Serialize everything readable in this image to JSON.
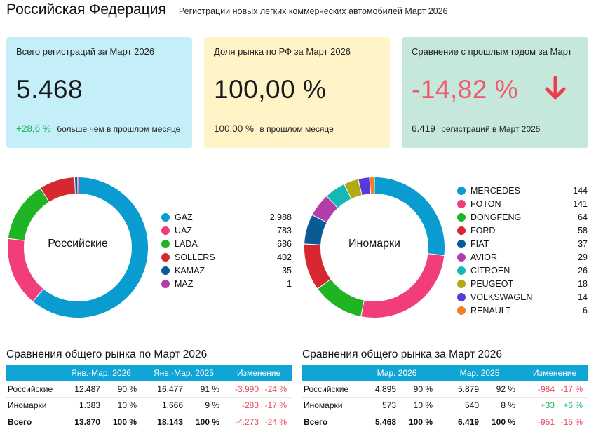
{
  "header": {
    "title": "Российская Федерация",
    "subtitle": "Регистрации новых легких  коммерческих  автомобилей Март 2026"
  },
  "cards": {
    "total": {
      "label": "Всего регистраций за Март 2026",
      "value": "5.468",
      "delta": "+28,6 %",
      "delta_text": "больше чем в прошлом месяце"
    },
    "share": {
      "label": "Доля рынка по РФ за Март 2026",
      "value": "100,00 %",
      "prev": "100,00 %",
      "prev_text": "в прошлом месяце"
    },
    "yoy": {
      "label": "Сравнение с прошлым годом за Март",
      "value": "-14,82 %",
      "arrow_icon": "arrow-down-icon",
      "arrow_color": "#ee3b4e",
      "prev": "6.419",
      "prev_text": "регистраций в Март 2025"
    }
  },
  "chart_data": [
    {
      "type": "pie",
      "title": "Российские",
      "categories": [
        "GAZ",
        "UAZ",
        "LADA",
        "SOLLERS",
        "KAMAZ",
        "MAZ"
      ],
      "values": [
        2988,
        783,
        686,
        402,
        35,
        1
      ],
      "value_labels": [
        "2.988",
        "783",
        "686",
        "402",
        "35",
        "1"
      ],
      "colors": [
        "#0a9bd0",
        "#f23d7d",
        "#1eb424",
        "#d6282e",
        "#0a5a96",
        "#b040a8"
      ],
      "legend": "right"
    },
    {
      "type": "pie",
      "title": "Иномарки",
      "categories": [
        "MERCEDES",
        "FOTON",
        "DONGFENG",
        "FORD",
        "FIAT",
        "AVIOR",
        "CITROEN",
        "PEUGEOT",
        "VOLKSWAGEN",
        "RENAULT"
      ],
      "values": [
        144,
        141,
        64,
        58,
        37,
        29,
        26,
        18,
        14,
        6
      ],
      "value_labels": [
        "144",
        "141",
        "64",
        "58",
        "37",
        "29",
        "26",
        "18",
        "14",
        "6"
      ],
      "colors": [
        "#0a9bd0",
        "#f23d7d",
        "#1eb424",
        "#d6282e",
        "#0a5a96",
        "#b040a8",
        "#14b8b4",
        "#b2aa14",
        "#5a3ad6",
        "#f5801e"
      ],
      "legend": "right"
    }
  ],
  "table_left": {
    "title": "Сравнения общего рынка по Март 2026",
    "headers": [
      "",
      "Янв.-Мар. 2026",
      "Янв.-Мар. 2025",
      "Изменение"
    ],
    "rows": [
      {
        "label": "Российские",
        "v1": "12.487",
        "p1": "90 %",
        "v2": "16.477",
        "p2": "91 %",
        "ch": "-3.990",
        "chp": "-24 %",
        "sign": "neg"
      },
      {
        "label": "Иномарки",
        "v1": "1.383",
        "p1": "10 %",
        "v2": "1.666",
        "p2": "9 %",
        "ch": "-283",
        "chp": "-17 %",
        "sign": "neg"
      },
      {
        "label": "Всего",
        "v1": "13.870",
        "p1": "100 %",
        "v2": "18.143",
        "p2": "100 %",
        "ch": "-4.273",
        "chp": "-24 %",
        "sign": "neg"
      }
    ]
  },
  "table_right": {
    "title": "Сравнения общего рынка за Март 2026",
    "headers": [
      "",
      "Мар. 2026",
      "Мар. 2025",
      "Изменение"
    ],
    "rows": [
      {
        "label": "Российские",
        "v1": "4.895",
        "p1": "90 %",
        "v2": "5.879",
        "p2": "92 %",
        "ch": "-984",
        "chp": "-17 %",
        "sign": "neg"
      },
      {
        "label": "Иномарки",
        "v1": "573",
        "p1": "10 %",
        "v2": "540",
        "p2": "8 %",
        "ch": "+33",
        "chp": "+6 %",
        "sign": "pos"
      },
      {
        "label": "Всего",
        "v1": "5.468",
        "p1": "100 %",
        "v2": "6.419",
        "p2": "100 %",
        "ch": "-951",
        "chp": "-15 %",
        "sign": "neg"
      }
    ]
  },
  "colors": {
    "positive": "#18b45a",
    "negative": "#e84a5b",
    "table_header": "#0fa5d6"
  }
}
